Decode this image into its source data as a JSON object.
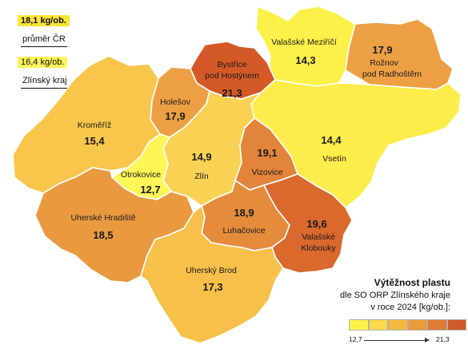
{
  "reference": {
    "cr_value": "18,1 kg/ob.",
    "cr_label": "průměr ČR",
    "cr_color": "#fde636",
    "kraj_value": "16,4 kg/ob.",
    "kraj_label": "Zlínský kraj",
    "kraj_color": "#fff55a"
  },
  "legend": {
    "title": "Výtěžnost plastu",
    "line1": "dle SO ORP Zlínského kraje",
    "line2": "v roce 2024 [kg/ob.]:",
    "min": "12,7",
    "max": "21,3",
    "colors": [
      "#fef24a",
      "#fad94a",
      "#f5b842",
      "#ec9b3c",
      "#e07b34",
      "#cf5a2a"
    ]
  },
  "regions": [
    {
      "id": "valasske-mezirici",
      "name": "Valašské Meziříčí",
      "name2": "",
      "value": "14,3",
      "color": "#fdf048"
    },
    {
      "id": "roznov",
      "name": "Rožnov",
      "name2": "pod Radhoštěm",
      "value": "17,9",
      "color": "#eda043"
    },
    {
      "id": "bystrice",
      "name": "Bystřice",
      "name2": "pod Hostýnem",
      "value": "21,3",
      "color": "#d35a26"
    },
    {
      "id": "holesov",
      "name": "Holešov",
      "name2": "",
      "value": "17,9",
      "color": "#eda043"
    },
    {
      "id": "kromeriz",
      "name": "Kroměříž",
      "name2": "",
      "value": "15,4",
      "color": "#f8c64a"
    },
    {
      "id": "otrokovice",
      "name": "Otrokovice",
      "name2": "",
      "value": "12,7",
      "color": "#fef556"
    },
    {
      "id": "zlin",
      "name": "Zlín",
      "name2": "",
      "value": "14,9",
      "color": "#f9d254"
    },
    {
      "id": "vizovice",
      "name": "Vizovice",
      "name2": "",
      "value": "19,1",
      "color": "#e28439"
    },
    {
      "id": "vsetin",
      "name": "Vsetín",
      "name2": "",
      "value": "14,4",
      "color": "#fdec4a"
    },
    {
      "id": "uherske-hradiste",
      "name": "Uherské Hradiště",
      "name2": "",
      "value": "18,5",
      "color": "#e99a3f"
    },
    {
      "id": "luhacovice",
      "name": "Luhačovice",
      "name2": "",
      "value": "18,9",
      "color": "#e48c3c"
    },
    {
      "id": "valasske-klobouky",
      "name": "Valašské",
      "name2": "Klobouky",
      "value": "19,6",
      "color": "#d9692d"
    },
    {
      "id": "uhersky-brod",
      "name": "Uherský Brod",
      "name2": "",
      "value": "17,3",
      "color": "#f6c04a"
    }
  ]
}
